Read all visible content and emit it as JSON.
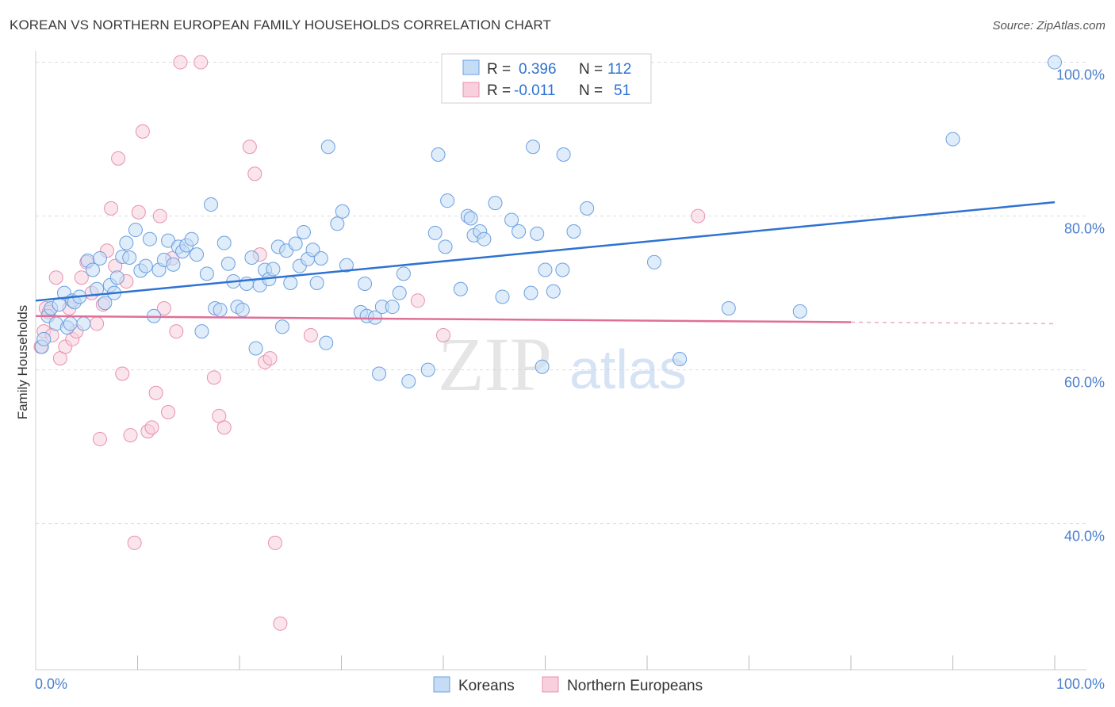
{
  "title": "KOREAN VS NORTHERN EUROPEAN FAMILY HOUSEHOLDS CORRELATION CHART",
  "source": "Source: ZipAtlas.com",
  "watermark": {
    "zip": "ZIP",
    "atlas": "atlas"
  },
  "colors": {
    "blue": "#6b9fe0",
    "blue_fill": "#c5dcf6",
    "blue_line": "#2e72d2",
    "pink": "#e890ad",
    "pink_fill": "#f8cfdc",
    "pink_line": "#e06f98",
    "tick_text": "#4a7fd0",
    "grid": "#dddddd"
  },
  "legend_top": {
    "rows": [
      {
        "r_label": "R =",
        "r_value": "0.396",
        "n_label": "N =",
        "n_value": "112"
      },
      {
        "r_label": "R =",
        "r_value": "-0.011",
        "n_label": "N =",
        "n_value": "51"
      }
    ]
  },
  "legend_bottom": {
    "items": [
      {
        "label": "Koreans"
      },
      {
        "label": "Northern Europeans"
      }
    ]
  },
  "chart_data": {
    "type": "scatter",
    "ylabel": "Family Households",
    "xlim": [
      0,
      100
    ],
    "ylim": [
      21,
      101.5
    ],
    "x_tick_labels": [
      "0.0%",
      "100.0%"
    ],
    "y_ticks": [
      40,
      60,
      80,
      100
    ],
    "y_tick_labels": [
      "40.0%",
      "60.0%",
      "80.0%",
      "100.0%"
    ],
    "grid": true,
    "series": [
      {
        "name": "Koreans",
        "trend": {
          "x": [
            0,
            100
          ],
          "y": [
            69.0,
            81.8
          ]
        },
        "points": [
          [
            0.6,
            63.0
          ],
          [
            0.8,
            64.0
          ],
          [
            1.2,
            67.0
          ],
          [
            1.5,
            68.0
          ],
          [
            2.0,
            66.0
          ],
          [
            2.3,
            68.5
          ],
          [
            2.8,
            70.0
          ],
          [
            3.1,
            65.5
          ],
          [
            3.4,
            66.0
          ],
          [
            3.6,
            69.0
          ],
          [
            3.8,
            68.8
          ],
          [
            4.3,
            69.5
          ],
          [
            4.7,
            66.0
          ],
          [
            5.1,
            74.2
          ],
          [
            5.6,
            73.0
          ],
          [
            6.0,
            70.5
          ],
          [
            6.3,
            74.5
          ],
          [
            6.8,
            68.7
          ],
          [
            7.3,
            71.0
          ],
          [
            7.7,
            70.0
          ],
          [
            8.0,
            72.0
          ],
          [
            8.5,
            74.7
          ],
          [
            8.9,
            76.5
          ],
          [
            9.2,
            74.6
          ],
          [
            9.8,
            78.2
          ],
          [
            10.3,
            72.9
          ],
          [
            10.8,
            73.5
          ],
          [
            11.2,
            77.0
          ],
          [
            11.6,
            67.0
          ],
          [
            12.1,
            73.0
          ],
          [
            12.6,
            74.3
          ],
          [
            13.0,
            76.8
          ],
          [
            13.5,
            73.7
          ],
          [
            14.0,
            76.0
          ],
          [
            14.4,
            75.4
          ],
          [
            14.8,
            76.2
          ],
          [
            15.3,
            77.0
          ],
          [
            15.8,
            75.0
          ],
          [
            16.3,
            65.0
          ],
          [
            16.8,
            72.5
          ],
          [
            17.2,
            81.5
          ],
          [
            17.6,
            68.0
          ],
          [
            18.1,
            67.8
          ],
          [
            18.5,
            76.5
          ],
          [
            18.9,
            73.8
          ],
          [
            19.4,
            71.5
          ],
          [
            19.8,
            68.2
          ],
          [
            20.3,
            67.8
          ],
          [
            20.7,
            71.2
          ],
          [
            21.2,
            74.6
          ],
          [
            21.6,
            62.8
          ],
          [
            22.0,
            71.0
          ],
          [
            22.5,
            73.0
          ],
          [
            22.9,
            71.8
          ],
          [
            23.3,
            73.1
          ],
          [
            23.8,
            76.0
          ],
          [
            24.2,
            65.6
          ],
          [
            24.6,
            75.5
          ],
          [
            25.0,
            71.3
          ],
          [
            25.5,
            76.4
          ],
          [
            25.9,
            73.5
          ],
          [
            26.3,
            77.9
          ],
          [
            26.7,
            74.4
          ],
          [
            27.2,
            75.6
          ],
          [
            27.6,
            71.3
          ],
          [
            28.0,
            74.5
          ],
          [
            28.5,
            63.5
          ],
          [
            28.7,
            89.0
          ],
          [
            29.6,
            79.0
          ],
          [
            30.1,
            80.6
          ],
          [
            30.5,
            73.6
          ],
          [
            31.9,
            67.5
          ],
          [
            32.3,
            71.2
          ],
          [
            32.5,
            67.0
          ],
          [
            33.3,
            66.8
          ],
          [
            33.7,
            59.5
          ],
          [
            34.0,
            68.2
          ],
          [
            35.0,
            68.2
          ],
          [
            35.7,
            70.0
          ],
          [
            36.1,
            72.5
          ],
          [
            36.6,
            58.5
          ],
          [
            38.5,
            60.0
          ],
          [
            39.2,
            77.8
          ],
          [
            39.5,
            88.0
          ],
          [
            40.4,
            82.0
          ],
          [
            40.2,
            76.0
          ],
          [
            41.7,
            70.5
          ],
          [
            42.4,
            80.0
          ],
          [
            42.7,
            79.7
          ],
          [
            43.0,
            77.5
          ],
          [
            43.6,
            78.0
          ],
          [
            44.0,
            77.0
          ],
          [
            45.1,
            81.7
          ],
          [
            45.8,
            69.5
          ],
          [
            46.7,
            79.5
          ],
          [
            47.4,
            78.0
          ],
          [
            48.8,
            89.0
          ],
          [
            48.6,
            70.0
          ],
          [
            49.2,
            77.7
          ],
          [
            49.7,
            60.4
          ],
          [
            50.0,
            73.0
          ],
          [
            50.8,
            70.2
          ],
          [
            51.7,
            73.0
          ],
          [
            51.8,
            88.0
          ],
          [
            52.8,
            78.0
          ],
          [
            54.1,
            81.0
          ],
          [
            60.7,
            74.0
          ],
          [
            63.2,
            61.4
          ],
          [
            68.0,
            68.0
          ],
          [
            75.0,
            67.6
          ],
          [
            90.0,
            90.0
          ],
          [
            100.0,
            100.0
          ]
        ]
      },
      {
        "name": "Northern Europeans",
        "trend": {
          "x": [
            0,
            80,
            100
          ],
          "y": [
            67.0,
            66.2,
            66.0
          ],
          "solid_until_x": 80
        },
        "points": [
          [
            0.5,
            63.0
          ],
          [
            0.8,
            65.0
          ],
          [
            1.0,
            68.0
          ],
          [
            1.3,
            67.5
          ],
          [
            1.6,
            64.5
          ],
          [
            2.0,
            72.0
          ],
          [
            2.4,
            61.5
          ],
          [
            2.9,
            63.0
          ],
          [
            3.3,
            68.0
          ],
          [
            3.6,
            64.0
          ],
          [
            4.0,
            65.0
          ],
          [
            4.5,
            72.0
          ],
          [
            5.0,
            74.0
          ],
          [
            5.5,
            70.0
          ],
          [
            6.0,
            66.0
          ],
          [
            6.3,
            51.0
          ],
          [
            6.6,
            68.5
          ],
          [
            7.0,
            75.5
          ],
          [
            7.4,
            81.0
          ],
          [
            7.8,
            73.5
          ],
          [
            8.1,
            87.5
          ],
          [
            8.5,
            59.5
          ],
          [
            8.9,
            71.5
          ],
          [
            9.3,
            51.5
          ],
          [
            9.7,
            37.5
          ],
          [
            10.1,
            80.5
          ],
          [
            10.5,
            91.0
          ],
          [
            11.0,
            52.0
          ],
          [
            11.4,
            52.5
          ],
          [
            11.8,
            57.0
          ],
          [
            12.2,
            80.0
          ],
          [
            12.6,
            68.0
          ],
          [
            13.0,
            54.5
          ],
          [
            13.4,
            74.5
          ],
          [
            13.8,
            65.0
          ],
          [
            14.2,
            100.0
          ],
          [
            16.2,
            100.0
          ],
          [
            17.5,
            59.0
          ],
          [
            18.0,
            54.0
          ],
          [
            18.5,
            52.5
          ],
          [
            21.0,
            89.0
          ],
          [
            21.5,
            85.5
          ],
          [
            22.0,
            75.0
          ],
          [
            22.5,
            61.0
          ],
          [
            23.0,
            61.5
          ],
          [
            23.5,
            37.5
          ],
          [
            24.0,
            27.0
          ],
          [
            27.0,
            64.5
          ],
          [
            37.5,
            69.0
          ],
          [
            40.0,
            64.5
          ],
          [
            65.0,
            80.0
          ]
        ]
      }
    ]
  }
}
